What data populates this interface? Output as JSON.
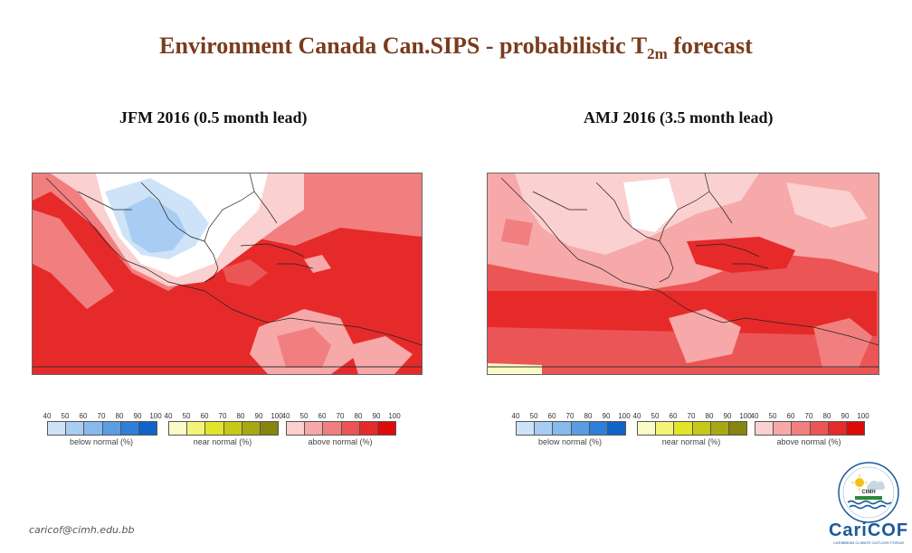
{
  "header": {
    "title_main": "Environment Canada Can.SIPS - probabilistic T",
    "title_sub": "2m",
    "title_end": " forecast"
  },
  "panels": [
    {
      "label": "JFM 2016 (0.5 month lead)"
    },
    {
      "label": "AMJ 2016 (3.5 month lead)"
    }
  ],
  "legend": {
    "below": {
      "ticks": [
        "40",
        "50",
        "60",
        "70",
        "80",
        "90",
        "100"
      ],
      "label": "below normal (%)",
      "colors": [
        "#cfe3f8",
        "#a9cdf2",
        "#86b9ec",
        "#5b9de3",
        "#2f7fd8",
        "#0f63c9"
      ]
    },
    "near": {
      "ticks": [
        "40",
        "50",
        "60",
        "70",
        "80",
        "90",
        "100"
      ],
      "label": "near normal (%)",
      "colors": [
        "#fbfbc8",
        "#f3f37a",
        "#e3e32a",
        "#c8c81a",
        "#a8a814",
        "#858510"
      ]
    },
    "above": {
      "ticks": [
        "40",
        "50",
        "60",
        "70",
        "80",
        "90",
        "100"
      ],
      "label": "above normal (%)",
      "colors": [
        "#fbd0d0",
        "#f7a8a8",
        "#f27f7f",
        "#ec5555",
        "#e62a2a",
        "#de0a0a"
      ]
    }
  },
  "footer": {
    "email": "caricof@cimh.edu.bb",
    "logo_org": "CIMH",
    "logo_name": "CariCOF",
    "logo_tagline": "CARIBBEAN CLIMATE OUTLOOK FORUM"
  }
}
